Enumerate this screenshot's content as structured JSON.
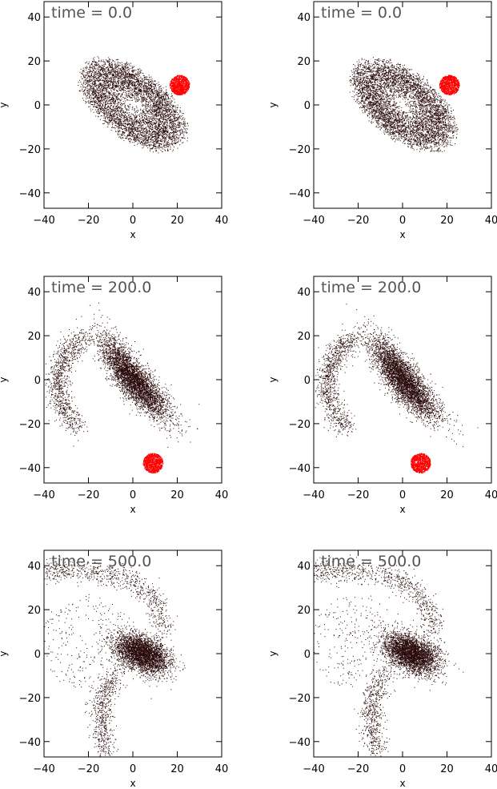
{
  "figure": {
    "panel_labels": [
      "time = 0.0",
      "time = 0.0",
      "time = 200.0",
      "time = 200.0",
      "time = 500.0",
      "time = 500.0"
    ]
  },
  "chart_data": [
    {
      "type": "scatter",
      "panel": "row1-left",
      "time_label": "time = 0.0",
      "time": 0.0,
      "xlabel": "x",
      "ylabel": "y",
      "xlim": [
        -40,
        40
      ],
      "ylim": [
        -47,
        47
      ],
      "xticks": [
        -40,
        -20,
        0,
        20,
        40
      ],
      "yticks": [
        -40,
        -20,
        0,
        20,
        40
      ],
      "grid": false,
      "series": [
        {
          "color": "#2a0a0a",
          "shape": "tilted-ellipse",
          "center": [
            0,
            0
          ],
          "semi_major": 30,
          "semi_minor": 16,
          "angle_deg": -38,
          "points": 5200
        },
        {
          "color": "#ff0000",
          "shape": "disk",
          "center": [
            21,
            9
          ],
          "radius": 4.5,
          "points": 900
        }
      ]
    },
    {
      "type": "scatter",
      "panel": "row1-right",
      "time_label": "time = 0.0",
      "time": 0.0,
      "xlabel": "x",
      "ylabel": "y",
      "xlim": [
        -40,
        40
      ],
      "ylim": [
        -47,
        47
      ],
      "xticks": [
        -40,
        -20,
        0,
        20,
        40
      ],
      "yticks": [
        -40,
        -20,
        0,
        20,
        40
      ],
      "grid": false,
      "series": [
        {
          "color": "#2a0a0a",
          "shape": "tilted-ellipse",
          "center": [
            0,
            0
          ],
          "semi_major": 30,
          "semi_minor": 16,
          "angle_deg": -38,
          "points": 5200
        },
        {
          "color": "#ff0000",
          "shape": "disk",
          "center": [
            21,
            9
          ],
          "radius": 4.5,
          "points": 900
        }
      ]
    },
    {
      "type": "scatter",
      "panel": "row2-left",
      "time_label": "time = 200.0",
      "time": 200.0,
      "xlabel": "x",
      "ylabel": "y",
      "xlim": [
        -40,
        40
      ],
      "ylim": [
        -47,
        47
      ],
      "xticks": [
        -40,
        -20,
        0,
        20,
        40
      ],
      "yticks": [
        -40,
        -20,
        0,
        20,
        40
      ],
      "grid": false,
      "series": [
        {
          "color": "#2a0a0a",
          "shape": "tidal-bar",
          "center": [
            0,
            0
          ],
          "semi_major": 30,
          "semi_minor": 8,
          "angle_deg": -52,
          "points": 4200
        },
        {
          "color": "#2a0a0a",
          "shape": "arm",
          "path": [
            [
              -22,
              19
            ],
            [
              -30,
              12
            ],
            [
              -34,
              2
            ],
            [
              -33,
              -10
            ],
            [
              -26,
              -22
            ]
          ],
          "points": 1000
        },
        {
          "color": "#ff0000",
          "shape": "disk",
          "center": [
            9,
            -38
          ],
          "radius": 4.5,
          "points": 900
        }
      ]
    },
    {
      "type": "scatter",
      "panel": "row2-right",
      "time_label": "time = 200.0",
      "time": 200.0,
      "xlabel": "x",
      "ylabel": "y",
      "xlim": [
        -40,
        40
      ],
      "ylim": [
        -47,
        47
      ],
      "xticks": [
        -40,
        -20,
        0,
        20,
        40
      ],
      "yticks": [
        -40,
        -20,
        0,
        20,
        40
      ],
      "grid": false,
      "series": [
        {
          "color": "#2a0a0a",
          "shape": "tidal-bar",
          "center": [
            0,
            0
          ],
          "semi_major": 30,
          "semi_minor": 8,
          "angle_deg": -52,
          "points": 4200
        },
        {
          "color": "#2a0a0a",
          "shape": "arm",
          "path": [
            [
              -22,
              19
            ],
            [
              -30,
              12
            ],
            [
              -34,
              2
            ],
            [
              -33,
              -10
            ],
            [
              -26,
              -22
            ]
          ],
          "points": 1000
        },
        {
          "color": "#ff0000",
          "shape": "disk",
          "center": [
            8,
            -38
          ],
          "radius": 4.5,
          "points": 900
        }
      ]
    },
    {
      "type": "scatter",
      "panel": "row3-left",
      "time_label": "time = 500.0",
      "time": 500.0,
      "xlabel": "x",
      "ylabel": "y",
      "xlim": [
        -40,
        40
      ],
      "ylim": [
        -47,
        47
      ],
      "xticks": [
        -40,
        -20,
        0,
        20,
        40
      ],
      "yticks": [
        -40,
        -20,
        0,
        20,
        40
      ],
      "grid": false,
      "series": [
        {
          "color": "#2a0a0a",
          "shape": "core",
          "center": [
            4,
            0
          ],
          "semi_major": 17,
          "semi_minor": 9,
          "angle_deg": -25,
          "points": 3600
        },
        {
          "color": "#2a0a0a",
          "shape": "arm",
          "path": [
            [
              14,
              10
            ],
            [
              10,
              24
            ],
            [
              0,
              33
            ],
            [
              -15,
              37
            ],
            [
              -30,
              38
            ],
            [
              -40,
              37
            ]
          ],
          "points": 800
        },
        {
          "color": "#2a0a0a",
          "shape": "arm",
          "path": [
            [
              -8,
              -10
            ],
            [
              -14,
              -20
            ],
            [
              -14,
              -32
            ],
            [
              -12,
              -46
            ]
          ],
          "points": 600
        },
        {
          "color": "#2a0a0a",
          "shape": "halo",
          "center": [
            -20,
            5
          ],
          "radius": 22,
          "points": 300
        }
      ]
    },
    {
      "type": "scatter",
      "panel": "row3-right",
      "time_label": "time = 500.0",
      "time": 500.0,
      "xlabel": "x",
      "ylabel": "y",
      "xlim": [
        -40,
        40
      ],
      "ylim": [
        -47,
        47
      ],
      "xticks": [
        -40,
        -20,
        0,
        20,
        40
      ],
      "yticks": [
        -40,
        -20,
        0,
        20,
        40
      ],
      "grid": false,
      "series": [
        {
          "color": "#2a0a0a",
          "shape": "core",
          "center": [
            4,
            0
          ],
          "semi_major": 17,
          "semi_minor": 9,
          "angle_deg": -25,
          "points": 3600
        },
        {
          "color": "#2a0a0a",
          "shape": "arm",
          "path": [
            [
              14,
              10
            ],
            [
              10,
              24
            ],
            [
              0,
              33
            ],
            [
              -15,
              37
            ],
            [
              -30,
              38
            ],
            [
              -40,
              37
            ]
          ],
          "points": 800
        },
        {
          "color": "#2a0a0a",
          "shape": "arm",
          "path": [
            [
              -8,
              -10
            ],
            [
              -14,
              -20
            ],
            [
              -14,
              -32
            ],
            [
              -12,
              -46
            ]
          ],
          "points": 600
        },
        {
          "color": "#2a0a0a",
          "shape": "halo",
          "center": [
            -20,
            5
          ],
          "radius": 22,
          "points": 300
        }
      ]
    }
  ]
}
